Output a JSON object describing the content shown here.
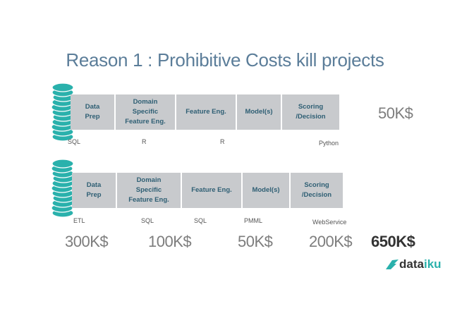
{
  "title": "Reason 1 : Prohibitive Costs kill projects",
  "row1": {
    "boxes": [
      "Data\nPrep",
      "Domain\nSpecific\nFeature Eng.",
      "Feature Eng.",
      "Model(s)",
      "Scoring\n/Decision"
    ],
    "techs": [
      "SQL",
      "R",
      "R",
      "Python"
    ],
    "cost": "50K$"
  },
  "row2": {
    "boxes": [
      "Data\nPrep",
      "Domain\nSpecific\nFeature Eng.",
      "Feature Eng.",
      "Model(s)",
      "Scoring\n/Decision"
    ],
    "techs": [
      "ETL",
      "SQL",
      "SQL",
      "PMML",
      "WebService"
    ],
    "costs": [
      "300K$",
      "100K$",
      "50K$",
      "200K$"
    ],
    "total": "650K$"
  },
  "logo": {
    "part1": "data",
    "part2": "iku"
  },
  "colors": {
    "box": "#c8cacd",
    "box_text": "#2f5f74",
    "coin": "#2ab1ac",
    "title": "#5b7d99"
  }
}
